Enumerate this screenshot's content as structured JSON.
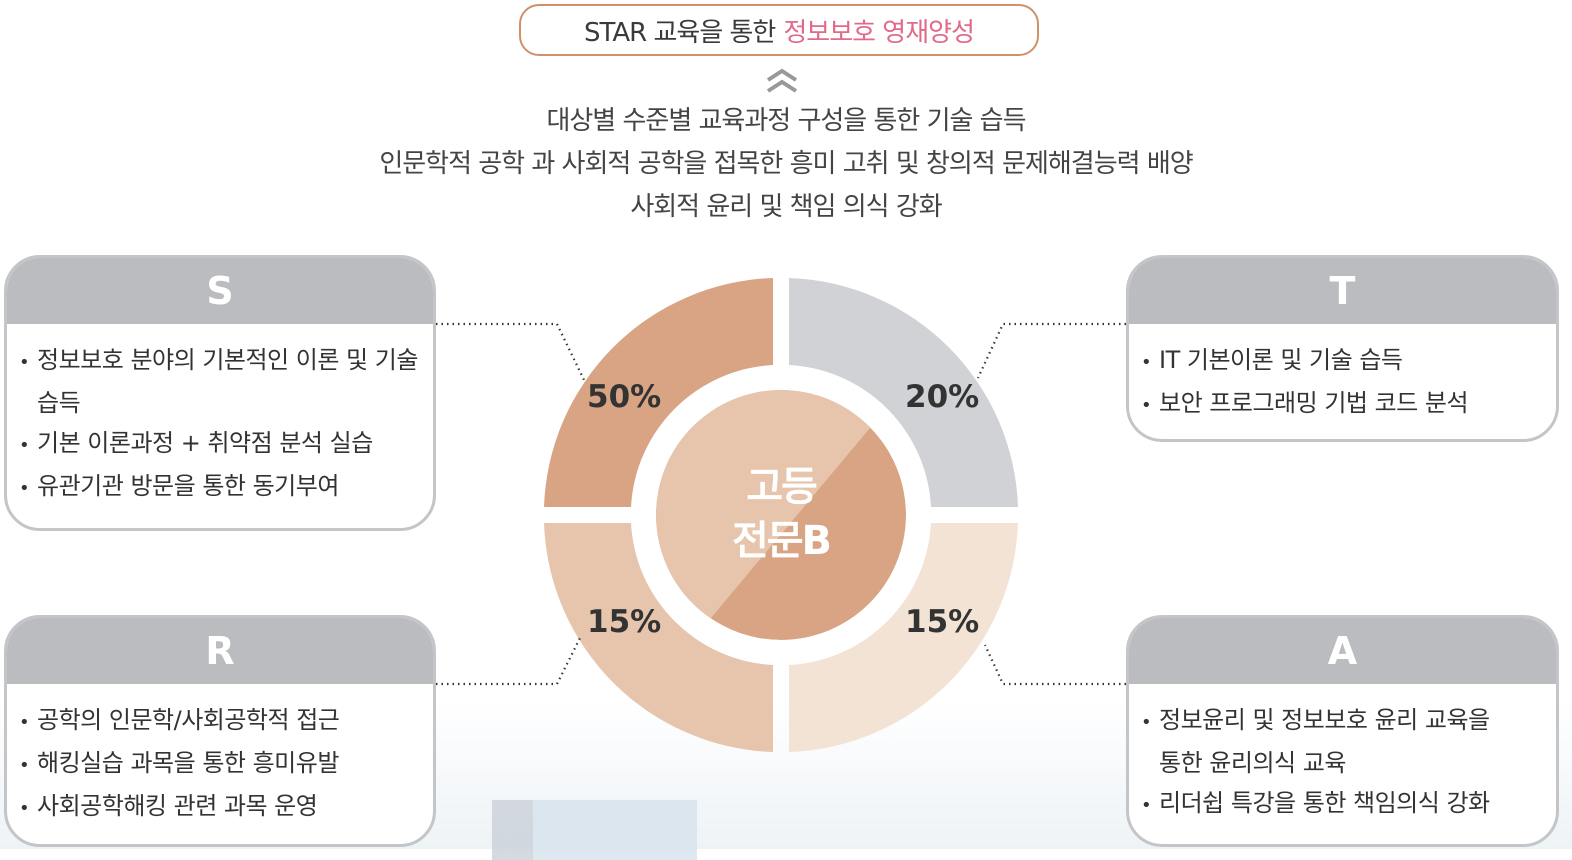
{
  "goal": {
    "prefix": "STAR 교육을 통한",
    "highlight": "정보보호 영재양성",
    "highlight_color": "#e06a88"
  },
  "arrow_icon": "double-chevron-up-icon",
  "descriptions": [
    "대상별 수준별 교육과정 구성을 통한 기술 습득",
    "인문학적 공학 과 사회적 공학을 접목한 흥미 고취 및 창의적 문제해결능력 배양",
    "사회적 윤리 및 책임 의식 강화"
  ],
  "center_label": {
    "line1": "고등",
    "line2": "전문B"
  },
  "segments": [
    {
      "key": "S",
      "percent": "50%",
      "color": "#d8a484"
    },
    {
      "key": "T",
      "percent": "20%",
      "color": "#d1d2d5"
    },
    {
      "key": "R",
      "percent": "15%",
      "color": "#e6c5ac"
    },
    {
      "key": "A",
      "percent": "15%",
      "color": "#f3e3d5"
    }
  ],
  "boxes": {
    "S": {
      "title": "S",
      "items": [
        "정보보호 분야의 기본적인 이론 및 기술 습득",
        "기본 이론과정 + 취약점 분석 실습",
        "유관기관 방문을 통한 동기부여"
      ]
    },
    "T": {
      "title": "T",
      "items": [
        "IT 기본이론 및 기술 습득",
        "보안 프로그래밍 기법 코드 분석"
      ]
    },
    "R": {
      "title": "R",
      "items": [
        "공학의 인문학/사회공학적 접근",
        "해킹실습 과목을 통한 흥미유발",
        "사회공학해킹 관련 과목 운영"
      ]
    },
    "A": {
      "title": "A",
      "items": [
        "정보윤리 및 정보보호 윤리 교육을 통한 윤리의식 교육",
        "리더쉽 특강을 통한 책임의식 강화"
      ]
    }
  }
}
